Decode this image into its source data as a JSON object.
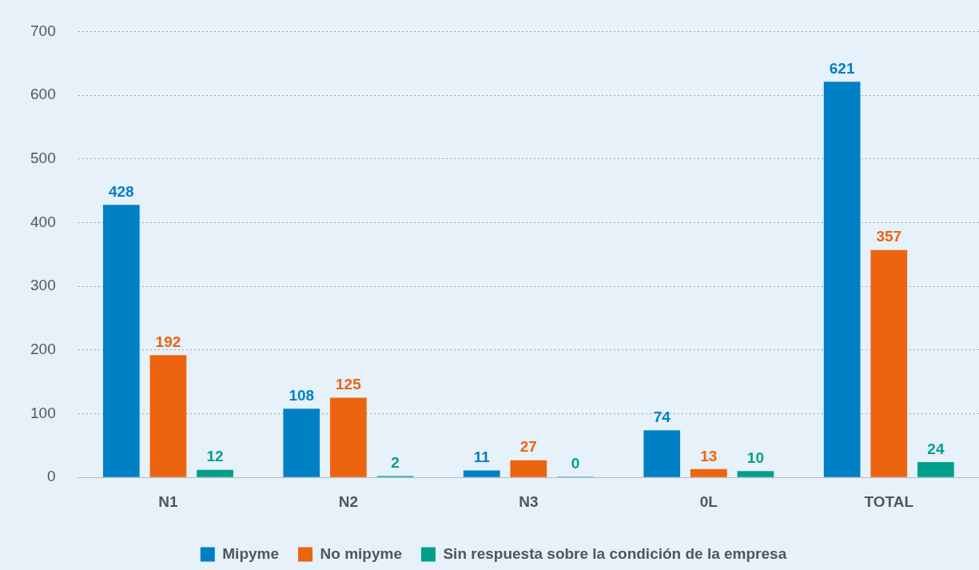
{
  "chart_data": {
    "type": "bar",
    "categories": [
      "N1",
      "N2",
      "N3",
      "0L",
      "TOTAL"
    ],
    "series": [
      {
        "name": "Mipyme",
        "color": "#0080c4",
        "values": [
          428,
          108,
          11,
          74,
          621
        ]
      },
      {
        "name": "No mipyme",
        "color": "#ec6410",
        "values": [
          192,
          125,
          27,
          13,
          357
        ]
      },
      {
        "name": "Sin respuesta sobre la condición de la empresa",
        "color": "#00a08c",
        "values": [
          12,
          2,
          0,
          10,
          24
        ]
      }
    ],
    "ylim": [
      0,
      700
    ],
    "yticks": [
      0,
      100,
      200,
      300,
      400,
      500,
      600,
      700
    ],
    "grid": "y",
    "legend": "bottom",
    "data_labels": true
  }
}
